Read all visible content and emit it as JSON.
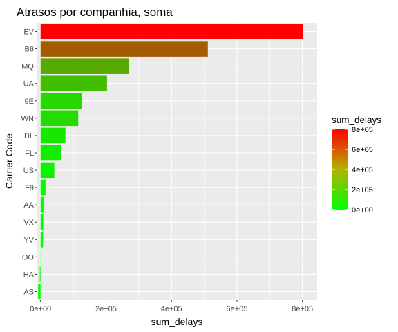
{
  "chart_data": {
    "type": "bar",
    "orientation": "horizontal",
    "title": "Atrasos por companhia, soma",
    "xlabel": "sum_delays",
    "ylabel": "Carrier Code",
    "categories": [
      "EV",
      "B6",
      "MQ",
      "UA",
      "9E",
      "WN",
      "DL",
      "FL",
      "US",
      "F9",
      "AA",
      "VX",
      "YV",
      "OO",
      "HA",
      "AS"
    ],
    "values": [
      802000,
      511000,
      270000,
      203000,
      126000,
      115000,
      76000,
      63000,
      42000,
      15000,
      10000,
      8000,
      7500,
      300,
      -2500,
      -7500
    ],
    "xlim": [
      -10000,
      845000
    ],
    "xticks": [
      0,
      200000,
      400000,
      600000,
      800000
    ],
    "xtick_labels": [
      "0e+00",
      "2e+05",
      "4e+05",
      "6e+05",
      "8e+05"
    ],
    "grid": true,
    "background": "#ebebeb",
    "color_scale": {
      "title": "sum_delays",
      "low_color": "#00ff00",
      "high_color": "#ff0000",
      "min": 0,
      "max": 800000,
      "ticks": [
        0,
        200000,
        400000,
        600000,
        800000
      ],
      "tick_labels": [
        "0e+00",
        "2e+05",
        "4e+05",
        "6e+05",
        "8e+05"
      ],
      "position": "right"
    }
  }
}
